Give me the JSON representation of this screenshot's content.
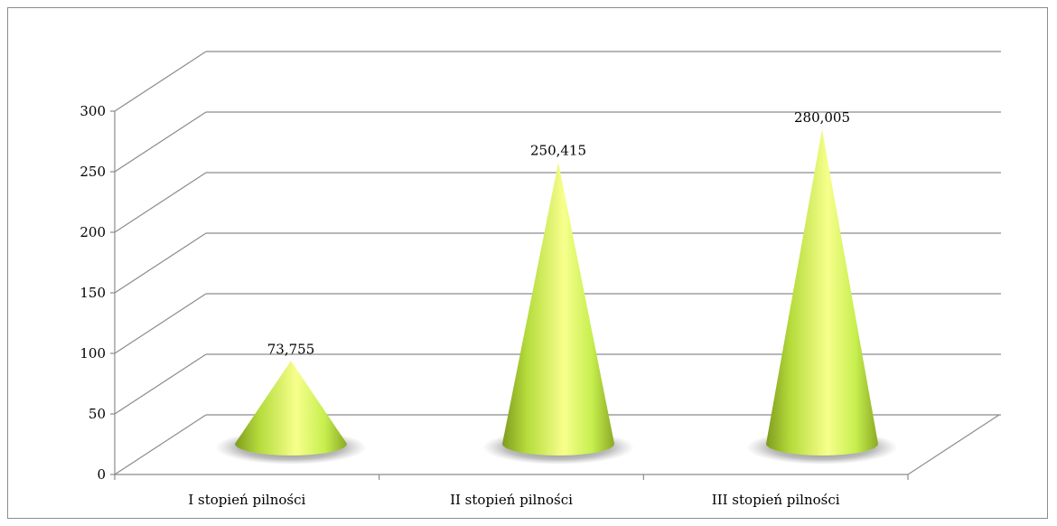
{
  "chart_data": {
    "type": "bar",
    "subtype": "3d-cone",
    "title": "",
    "xlabel": "",
    "ylabel": "",
    "categories": [
      "I stopień pilności",
      "II stopień pilności",
      "III stopień pilności"
    ],
    "values": [
      73.755,
      250.415,
      280.005
    ],
    "data_labels": [
      "73,755",
      "250,415",
      "280,005"
    ],
    "ylim": [
      0,
      300
    ],
    "yticks": [
      "0",
      "50",
      "100",
      "150",
      "200",
      "250",
      "300"
    ],
    "grid": true,
    "legend": "none",
    "colors": {
      "cone_light": "#f7ff8c",
      "cone_mid": "#c6ef4e",
      "cone_dark": "#7f9c1f",
      "grid": "#8c8c8c",
      "shadow": "#5a5a5a"
    }
  }
}
